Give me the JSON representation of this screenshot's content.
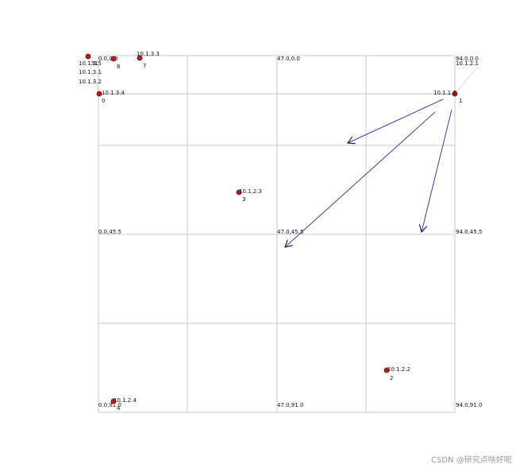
{
  "grid_labels": [
    "0.0,0.0",
    "47.0,0.0",
    "94.0,0.0",
    "0.0,45.5",
    "47.0,45.5",
    "94.0,45.5",
    "0.0,91.0",
    "47.0,91.0",
    "94.0,91.0"
  ],
  "nodes": [
    {
      "id": "0",
      "ip": "10.1.3.4"
    },
    {
      "id": "1",
      "ip": "10.1.1.2"
    },
    {
      "id": "2",
      "ip": "10.1.2.2"
    },
    {
      "id": "3",
      "ip": "10.1.2.3"
    },
    {
      "id": "4",
      "ip": "10.1.2.4"
    },
    {
      "id": "5",
      "ip": "10.1.3.5"
    },
    {
      "id": "6",
      "ip": "10.1.3.1"
    },
    {
      "id": "7",
      "ip": "10.1.3.3"
    }
  ],
  "extra_labels": [
    "10.1.3.2",
    "10.1.2.1",
    "1"
  ],
  "watermark": "CSDN @研究点啥好呢"
}
